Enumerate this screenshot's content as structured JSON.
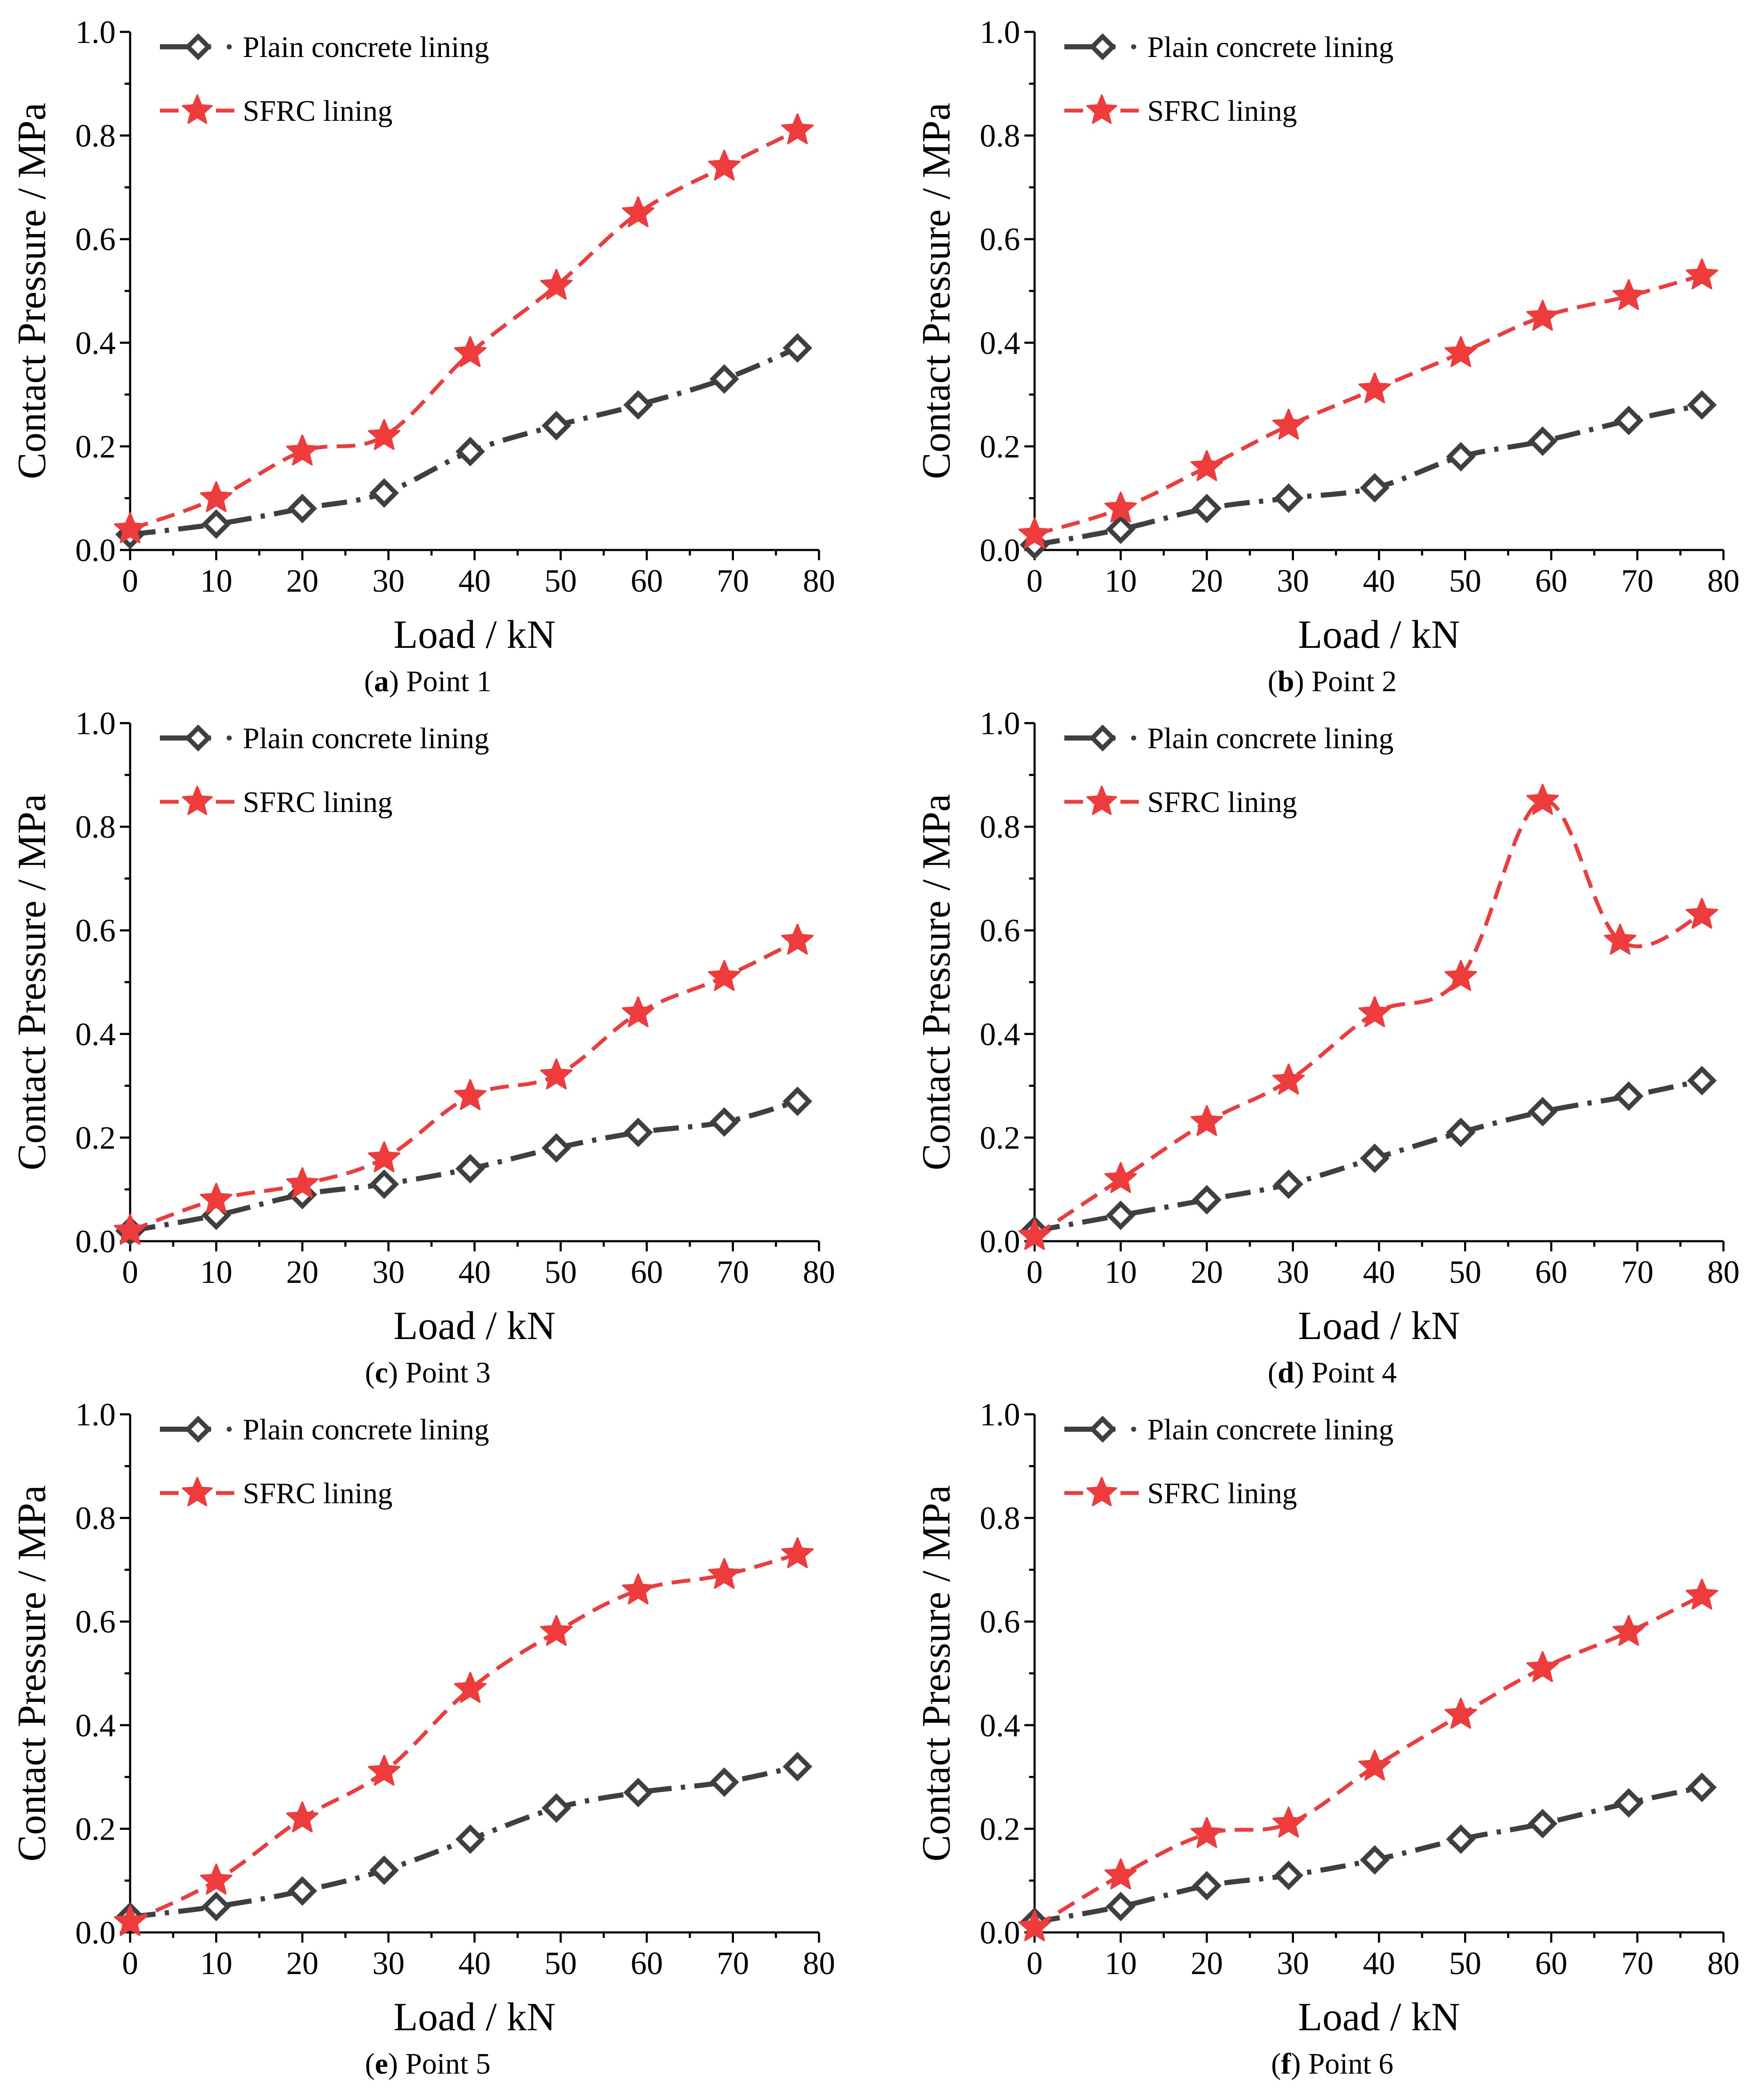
{
  "chart_data": [
    {
      "type": "line",
      "caption": {
        "letter": "a",
        "text": "Point 1"
      },
      "xlabel": "Load / kN",
      "ylabel": "Contact Pressure / MPa",
      "xlim": [
        0,
        80
      ],
      "ylim": [
        0,
        1.0
      ],
      "x_ticks": [
        "0",
        "10",
        "20",
        "30",
        "40",
        "50",
        "60",
        "70",
        "80"
      ],
      "y_ticks": [
        "0.0",
        "0.2",
        "0.4",
        "0.6",
        "0.8",
        "1.0"
      ],
      "legend_position": "top-left",
      "series": [
        {
          "name": "Plain concrete lining",
          "x": [
            0,
            10,
            20,
            29.5,
            39.5,
            49.5,
            59,
            69,
            77.5
          ],
          "values": [
            0.03,
            0.05,
            0.08,
            0.11,
            0.19,
            0.24,
            0.28,
            0.33,
            0.39
          ]
        },
        {
          "name": "SFRC lining",
          "x": [
            0,
            10,
            20,
            29.5,
            39.5,
            49.5,
            59,
            69,
            77.5
          ],
          "values": [
            0.04,
            0.1,
            0.19,
            0.22,
            0.38,
            0.51,
            0.65,
            0.74,
            0.81
          ]
        }
      ]
    },
    {
      "type": "line",
      "caption": {
        "letter": "b",
        "text": "Point 2"
      },
      "xlabel": "Load / kN",
      "ylabel": "Contact Pressure / MPa",
      "xlim": [
        0,
        80
      ],
      "ylim": [
        0,
        1.0
      ],
      "x_ticks": [
        "0",
        "10",
        "20",
        "30",
        "40",
        "50",
        "60",
        "70",
        "80"
      ],
      "y_ticks": [
        "0.0",
        "0.2",
        "0.4",
        "0.6",
        "0.8",
        "1.0"
      ],
      "legend_position": "top-left",
      "series": [
        {
          "name": "Plain concrete lining",
          "x": [
            0,
            10,
            20,
            29.5,
            39.5,
            49.5,
            59,
            69,
            77.5
          ],
          "values": [
            0.01,
            0.04,
            0.08,
            0.1,
            0.12,
            0.18,
            0.21,
            0.25,
            0.28
          ]
        },
        {
          "name": "SFRC lining",
          "x": [
            0,
            10,
            20,
            29.5,
            39.5,
            49.5,
            59,
            69,
            77.5
          ],
          "values": [
            0.03,
            0.08,
            0.16,
            0.24,
            0.31,
            0.38,
            0.45,
            0.49,
            0.53
          ]
        }
      ]
    },
    {
      "type": "line",
      "caption": {
        "letter": "c",
        "text": "Point 3"
      },
      "xlabel": "Load / kN",
      "ylabel": "Contact Pressure / MPa",
      "xlim": [
        0,
        80
      ],
      "ylim": [
        0,
        1.0
      ],
      "x_ticks": [
        "0",
        "10",
        "20",
        "30",
        "40",
        "50",
        "60",
        "70",
        "80"
      ],
      "y_ticks": [
        "0.0",
        "0.2",
        "0.4",
        "0.6",
        "0.8",
        "1.0"
      ],
      "legend_position": "top-left",
      "series": [
        {
          "name": "Plain concrete lining",
          "x": [
            0,
            10,
            20,
            29.5,
            39.5,
            49.5,
            59,
            69,
            77.5
          ],
          "values": [
            0.02,
            0.05,
            0.09,
            0.11,
            0.14,
            0.18,
            0.21,
            0.23,
            0.27
          ]
        },
        {
          "name": "SFRC lining",
          "x": [
            0,
            10,
            20,
            29.5,
            39.5,
            49.5,
            59,
            69,
            77.5
          ],
          "values": [
            0.02,
            0.08,
            0.11,
            0.16,
            0.28,
            0.32,
            0.44,
            0.51,
            0.58
          ]
        }
      ]
    },
    {
      "type": "line",
      "caption": {
        "letter": "d",
        "text": "Point 4"
      },
      "xlabel": "Load / kN",
      "ylabel": "Contact Pressure / MPa",
      "xlim": [
        0,
        80
      ],
      "ylim": [
        0,
        1.0
      ],
      "x_ticks": [
        "0",
        "10",
        "20",
        "30",
        "40",
        "50",
        "60",
        "70",
        "80"
      ],
      "y_ticks": [
        "0.0",
        "0.2",
        "0.4",
        "0.6",
        "0.8",
        "1.0"
      ],
      "legend_position": "top-left",
      "series": [
        {
          "name": "Plain concrete lining",
          "x": [
            0,
            10,
            20,
            29.5,
            39.5,
            49.5,
            59,
            69,
            77.5
          ],
          "values": [
            0.02,
            0.05,
            0.08,
            0.11,
            0.16,
            0.21,
            0.25,
            0.28,
            0.31
          ]
        },
        {
          "name": "SFRC lining",
          "x": [
            0,
            10,
            20,
            29.5,
            39.5,
            49.5,
            59,
            68,
            77.5
          ],
          "values": [
            0.01,
            0.12,
            0.23,
            0.31,
            0.44,
            0.51,
            0.85,
            0.58,
            0.63
          ]
        }
      ]
    },
    {
      "type": "line",
      "caption": {
        "letter": "e",
        "text": "Point 5"
      },
      "xlabel": "Load / kN",
      "ylabel": "Contact Pressure / MPa",
      "xlim": [
        0,
        80
      ],
      "ylim": [
        0,
        1.0
      ],
      "x_ticks": [
        "0",
        "10",
        "20",
        "30",
        "40",
        "50",
        "60",
        "70",
        "80"
      ],
      "y_ticks": [
        "0.0",
        "0.2",
        "0.4",
        "0.6",
        "0.8",
        "1.0"
      ],
      "legend_position": "top-left",
      "series": [
        {
          "name": "Plain concrete lining",
          "x": [
            0,
            10,
            20,
            29.5,
            39.5,
            49.5,
            59,
            69,
            77.5
          ],
          "values": [
            0.03,
            0.05,
            0.08,
            0.12,
            0.18,
            0.24,
            0.27,
            0.29,
            0.32
          ]
        },
        {
          "name": "SFRC lining",
          "x": [
            0,
            10,
            20,
            29.5,
            39.5,
            49.5,
            59,
            69,
            77.5
          ],
          "values": [
            0.02,
            0.1,
            0.22,
            0.31,
            0.47,
            0.58,
            0.66,
            0.69,
            0.73
          ]
        }
      ]
    },
    {
      "type": "line",
      "caption": {
        "letter": "f",
        "text": "Point 6"
      },
      "xlabel": "Load / kN",
      "ylabel": "Contact Pressure / MPa",
      "xlim": [
        0,
        80
      ],
      "ylim": [
        0,
        1.0
      ],
      "x_ticks": [
        "0",
        "10",
        "20",
        "30",
        "40",
        "50",
        "60",
        "70",
        "80"
      ],
      "y_ticks": [
        "0.0",
        "0.2",
        "0.4",
        "0.6",
        "0.8",
        "1.0"
      ],
      "legend_position": "top-left",
      "series": [
        {
          "name": "Plain concrete lining",
          "x": [
            0,
            10,
            20,
            29.5,
            39.5,
            49.5,
            59,
            69,
            77.5
          ],
          "values": [
            0.02,
            0.05,
            0.09,
            0.11,
            0.14,
            0.18,
            0.21,
            0.25,
            0.28
          ]
        },
        {
          "name": "SFRC lining",
          "x": [
            0,
            10,
            20,
            29.5,
            39.5,
            49.5,
            59,
            69,
            77.5
          ],
          "values": [
            0.01,
            0.11,
            0.19,
            0.21,
            0.32,
            0.42,
            0.51,
            0.58,
            0.65
          ]
        }
      ]
    }
  ],
  "colors": {
    "plain": "#3f3f3f",
    "sfrc": "#ee3b3b"
  }
}
